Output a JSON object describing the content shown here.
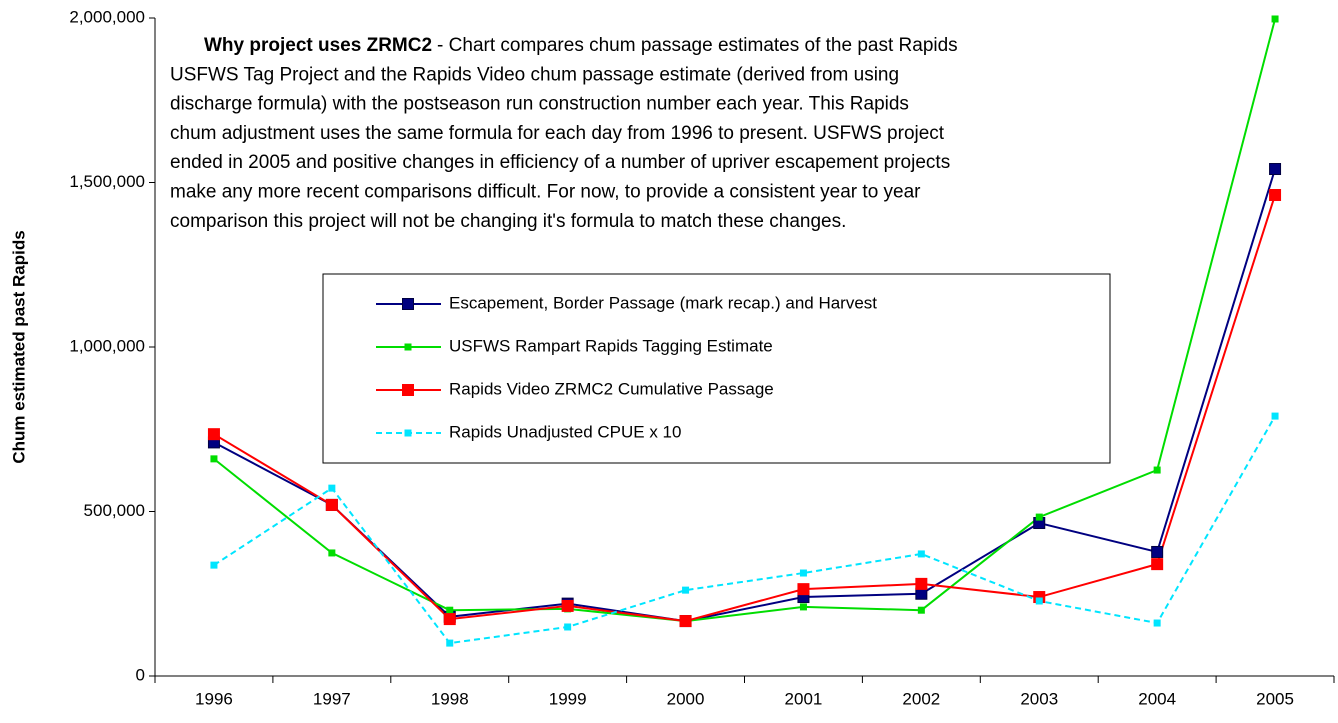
{
  "chart_data": {
    "type": "line",
    "y_label": "Chum estimated past Rapids",
    "annotation_title": "Why project uses ZRMC2",
    "annotation_lines": [
      "- Chart compares chum passage estimates of the past Rapids",
      "USFWS Tag Project and the Rapids Video chum passage estimate (derived from using",
      "discharge formula) with the postseason run construction number each year. This Rapids",
      "chum adjustment uses the same formula for each day from 1996 to present.  USFWS project",
      "ended in 2005 and positive changes in efficiency of a number of upriver escapement projects",
      "make any more recent comparisons difficult. For now, to provide a consistent year to year",
      "comparison this project will not be changing it's formula to match these changes."
    ],
    "categories": [
      "1996",
      "1997",
      "1998",
      "1999",
      "2000",
      "2001",
      "2002",
      "2003",
      "2004",
      "2005"
    ],
    "ylim": [
      0,
      2000000
    ],
    "yticks": [
      0,
      {
        "value": 500000,
        "label": "500,000"
      },
      {
        "value": 1000000,
        "label": "1,000,000"
      },
      {
        "value": 1500000,
        "label": "1,500,000"
      },
      {
        "value": 2000000,
        "label": "2,000,000"
      }
    ],
    "series": [
      {
        "name": "Escapement, Border Passage (mark recap.) and Harvest",
        "color": "#000080",
        "marker": "large",
        "dashed": false,
        "values": [
          710000,
          520000,
          180000,
          220000,
          167000,
          240000,
          250000,
          465000,
          377000,
          1541000
        ]
      },
      {
        "name": "USFWS Rampart Rapids Tagging Estimate",
        "color": "#00dd00",
        "marker": "small",
        "dashed": false,
        "values": [
          660000,
          374000,
          200000,
          204000,
          167000,
          210000,
          200000,
          483000,
          626000,
          1997000
        ]
      },
      {
        "name": "Rapids Video ZRMC2 Cumulative Passage",
        "color": "#ff0000",
        "marker": "large",
        "dashed": false,
        "values": [
          735000,
          520000,
          173000,
          213000,
          167000,
          264000,
          280000,
          240000,
          340000,
          1462000
        ]
      },
      {
        "name": "Rapids Unadjusted CPUE x 10",
        "color": "#00e5ff",
        "marker": "small",
        "dashed": true,
        "values": [
          337000,
          571000,
          100000,
          149000,
          261000,
          313000,
          371000,
          228000,
          161000,
          790000
        ]
      }
    ]
  }
}
